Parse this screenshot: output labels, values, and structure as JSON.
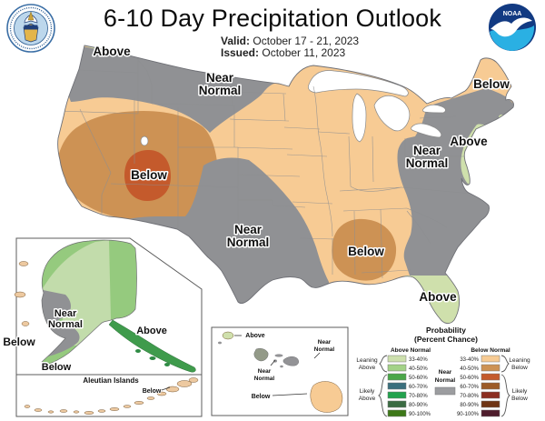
{
  "header": {
    "title": "6-10 Day Precipitation Outlook",
    "valid_label": "Valid:",
    "valid_value": "October 17 - 21, 2023",
    "issued_label": "Issued:",
    "issued_value": "October 11, 2023",
    "noaa_logo_text": "NOAA"
  },
  "map": {
    "labels": {
      "nw_above": "Above",
      "north_near_1": "Near",
      "north_near_2": "Normal",
      "west_below": "Below",
      "south_near_1": "Near",
      "south_near_2": "Normal",
      "se_below": "Below",
      "ne_below": "Below",
      "east_near_1": "Near",
      "east_near_2": "Normal",
      "east_above": "Above",
      "fl_above": "Above"
    }
  },
  "alaska": {
    "labels": {
      "near_1": "Near",
      "near_2": "Normal",
      "above": "Above",
      "below_west": "Below",
      "below_peninsula": "Below",
      "aleutian_title": "Aleutian Islands",
      "below_aleutian": "Below"
    }
  },
  "hawaii": {
    "labels": {
      "kauai_above": "Above",
      "near_right_1": "Near",
      "near_right_2": "Normal",
      "near_left_1": "Near",
      "near_left_2": "Normal",
      "big_island_below": "Below"
    }
  },
  "legend": {
    "title1": "Probability",
    "title2": "(Percent Chance)",
    "above_header": "Above Normal",
    "below_header": "Below Normal",
    "near1": "Near",
    "near2": "Normal",
    "rows": [
      "33-40%",
      "40-50%",
      "50-60%",
      "60-70%",
      "70-80%",
      "80-90%",
      "90-100%"
    ],
    "above_colors": [
      "#cde0ad",
      "#a3d287",
      "#4aa648",
      "#3a6f7d",
      "#22a24d",
      "#3a6b42",
      "#3d7818"
    ],
    "below_colors": [
      "#f7cb94",
      "#cd9254",
      "#c45a2c",
      "#9c5b28",
      "#8c2e20",
      "#6f3414",
      "#4e1c2c"
    ],
    "near_normal_color": "#9c9da0",
    "sides": {
      "leaning_above1": "Leaning",
      "leaning_above2": "Above",
      "likely_above1": "Likely",
      "likely_above2": "Above",
      "leaning_below1": "Leaning",
      "leaning_below2": "Below",
      "likely_below1": "Likely",
      "likely_below2": "Below"
    }
  },
  "colors": {
    "below_33": "#f7cb94",
    "below_40": "#cd9254",
    "below_50": "#c45a2c",
    "above_33": "#cfe0ac",
    "near_normal": "#909194",
    "ak_above_33": "#c2dcab",
    "ak_above_40": "#95ca7e",
    "ak_above_50": "#3f9b4c",
    "island_tan": "#edc9a0",
    "noaa_dark": "#123a82",
    "noaa_light": "#2ab0e3"
  }
}
